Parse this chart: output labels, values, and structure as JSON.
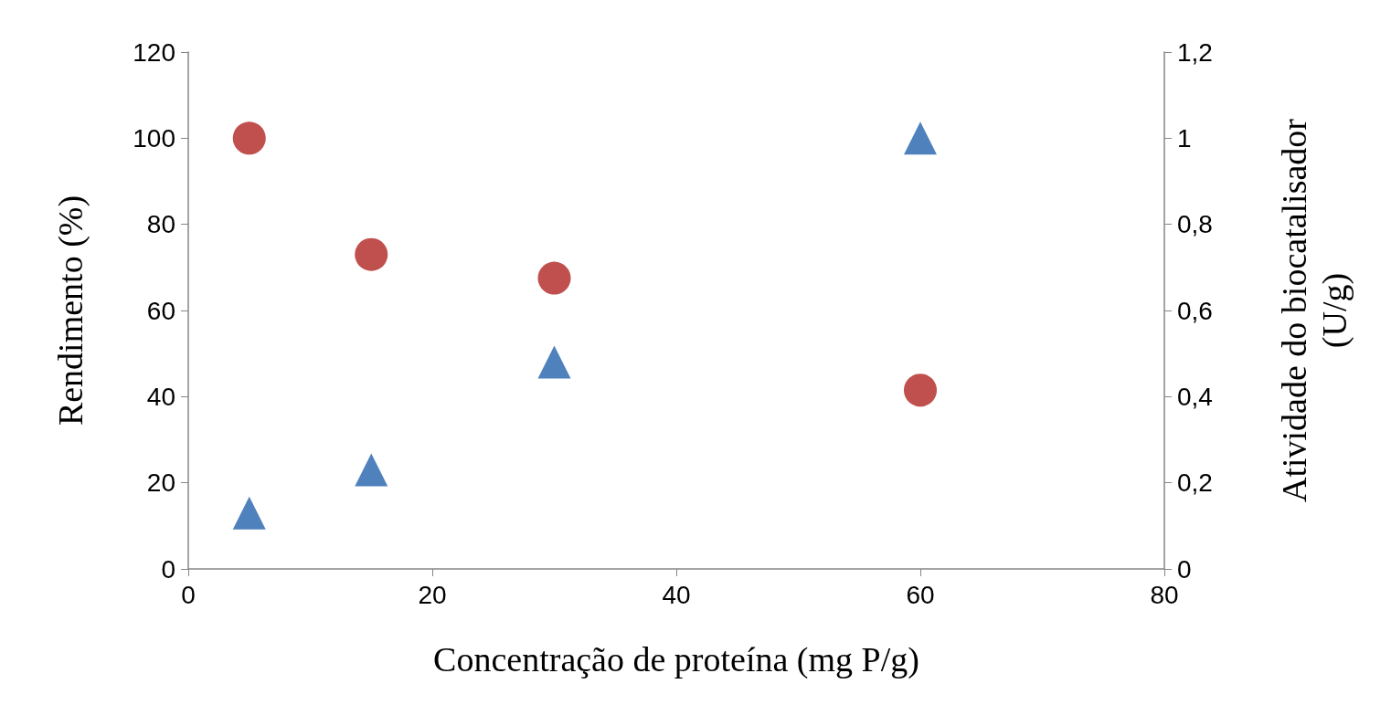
{
  "chart_data": {
    "type": "scatter",
    "xlabel": "Concentração de proteína (mg P/g)",
    "ylabel": "Rendimento (%)",
    "y2label": "Atividade do biocatalisador (U/g)",
    "x": [
      5,
      15,
      30,
      60
    ],
    "series": [
      {
        "color": "#c0504d",
        "marker": "circle",
        "values": [
          100,
          73,
          67.5,
          41.5
        ]
      },
      {
        "color": "#4f81bd",
        "marker": "triangle",
        "axis": "y2",
        "values": [
          0.13,
          0.23,
          0.48,
          1.0
        ]
      }
    ],
    "xlim": [
      0,
      80
    ],
    "xticks": [
      0,
      20,
      40,
      60,
      80
    ],
    "ylim": [
      0,
      120
    ],
    "yticks": [
      0,
      20,
      40,
      60,
      80,
      100,
      120
    ],
    "y2lim": [
      0,
      1.2
    ],
    "y2ticks": [
      {
        "value": 0,
        "label": "0"
      },
      {
        "value": 0.2,
        "label": "0,2"
      },
      {
        "value": 0.4,
        "label": "0,4"
      },
      {
        "value": 0.6,
        "label": "0,6"
      },
      {
        "value": 0.8,
        "label": "0,8"
      },
      {
        "value": 1,
        "label": "1"
      },
      {
        "value": 1.2,
        "label": "1,2"
      }
    ],
    "grid": false
  }
}
